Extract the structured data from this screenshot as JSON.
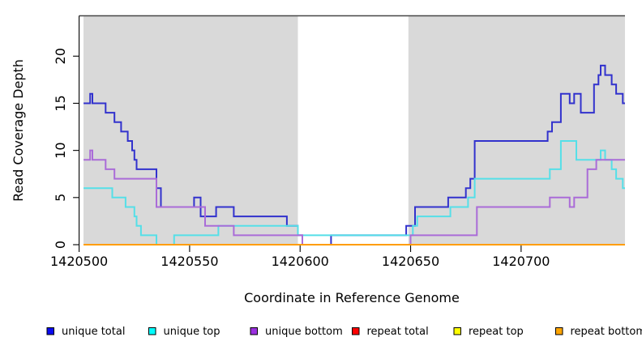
{
  "chart_data": {
    "type": "line",
    "step": true,
    "title": "",
    "xlabel": "Coordinate in Reference Genome",
    "ylabel": "Read Coverage Depth",
    "xlim": [
      1420500,
      1420747
    ],
    "ylim": [
      0,
      24.28
    ],
    "x_ticks": [
      1420500,
      1420550,
      1420600,
      1420650,
      1420700
    ],
    "y_ticks": [
      0,
      5,
      10,
      15,
      20
    ],
    "grid": false,
    "legend_position": "bottom",
    "plot_background": "#ffffff",
    "shading_color": "#d9d9d9",
    "shaded_regions": [
      [
        1420502,
        1420599
      ],
      [
        1420649,
        1420747
      ]
    ],
    "axis_color": "#000000",
    "top_border_color": "#474747",
    "series": [
      {
        "name": "unique total",
        "line_color": "#3232cd",
        "legend_color": "#0a0af0",
        "points": [
          [
            1420502,
            15
          ],
          [
            1420505,
            16
          ],
          [
            1420506,
            15
          ],
          [
            1420512,
            14
          ],
          [
            1420516,
            13
          ],
          [
            1420519,
            12
          ],
          [
            1420522,
            11
          ],
          [
            1420524,
            10
          ],
          [
            1420525,
            9
          ],
          [
            1420526,
            8
          ],
          [
            1420535,
            6
          ],
          [
            1420537,
            4
          ],
          [
            1420552,
            5
          ],
          [
            1420555,
            3
          ],
          [
            1420562,
            4
          ],
          [
            1420570,
            3
          ],
          [
            1420594,
            2
          ],
          [
            1420599,
            1
          ],
          [
            1420601,
            0
          ],
          [
            1420614,
            1
          ],
          [
            1420648,
            2
          ],
          [
            1420652,
            4
          ],
          [
            1420667,
            5
          ],
          [
            1420675,
            6
          ],
          [
            1420677,
            7
          ],
          [
            1420679,
            11
          ],
          [
            1420712,
            12
          ],
          [
            1420714,
            13
          ],
          [
            1420718,
            16
          ],
          [
            1420722,
            15
          ],
          [
            1420724,
            16
          ],
          [
            1420727,
            14
          ],
          [
            1420733,
            17
          ],
          [
            1420735,
            18
          ],
          [
            1420736,
            19
          ],
          [
            1420738,
            18
          ],
          [
            1420741,
            17
          ],
          [
            1420743,
            16
          ],
          [
            1420746,
            15
          ],
          [
            1420747,
            15
          ]
        ]
      },
      {
        "name": "unique top",
        "line_color": "#55dfe8",
        "legend_color": "#00ffff",
        "points": [
          [
            1420502,
            6
          ],
          [
            1420515,
            5
          ],
          [
            1420521,
            4
          ],
          [
            1420525,
            3
          ],
          [
            1420526,
            2
          ],
          [
            1420528,
            1
          ],
          [
            1420535,
            0
          ],
          [
            1420543,
            1
          ],
          [
            1420563,
            2
          ],
          [
            1420599,
            1
          ],
          [
            1420651,
            2
          ],
          [
            1420653,
            3
          ],
          [
            1420668,
            4
          ],
          [
            1420676,
            5
          ],
          [
            1420679,
            7
          ],
          [
            1420713,
            8
          ],
          [
            1420718,
            11
          ],
          [
            1420725,
            9
          ],
          [
            1420736,
            10
          ],
          [
            1420738,
            9
          ],
          [
            1420741,
            8
          ],
          [
            1420743,
            7
          ],
          [
            1420746,
            6
          ],
          [
            1420747,
            6
          ]
        ]
      },
      {
        "name": "unique bottom",
        "line_color": "#aa6cd8",
        "legend_color": "#9b30e0",
        "points": [
          [
            1420502,
            9
          ],
          [
            1420505,
            10
          ],
          [
            1420506,
            9
          ],
          [
            1420512,
            8
          ],
          [
            1420516,
            7
          ],
          [
            1420535,
            4
          ],
          [
            1420557,
            2
          ],
          [
            1420570,
            1
          ],
          [
            1420601,
            0
          ],
          [
            1420650,
            1
          ],
          [
            1420680,
            4
          ],
          [
            1420713,
            5
          ],
          [
            1420722,
            4
          ],
          [
            1420724,
            5
          ],
          [
            1420730,
            8
          ],
          [
            1420734,
            9
          ],
          [
            1420747,
            9
          ]
        ]
      },
      {
        "name": "repeat total",
        "line_color": "#cc2222",
        "legend_color": "#ff0000",
        "points": [
          [
            1420502,
            0
          ],
          [
            1420747,
            0
          ]
        ]
      },
      {
        "name": "repeat top",
        "line_color": "#e8e800",
        "legend_color": "#ffff00",
        "points": [
          [
            1420502,
            0
          ],
          [
            1420747,
            0
          ]
        ]
      },
      {
        "name": "repeat bottom",
        "line_color": "#ff9d00",
        "legend_color": "#ffa500",
        "points": [
          [
            1420502,
            0
          ],
          [
            1420747,
            0
          ]
        ]
      }
    ]
  }
}
